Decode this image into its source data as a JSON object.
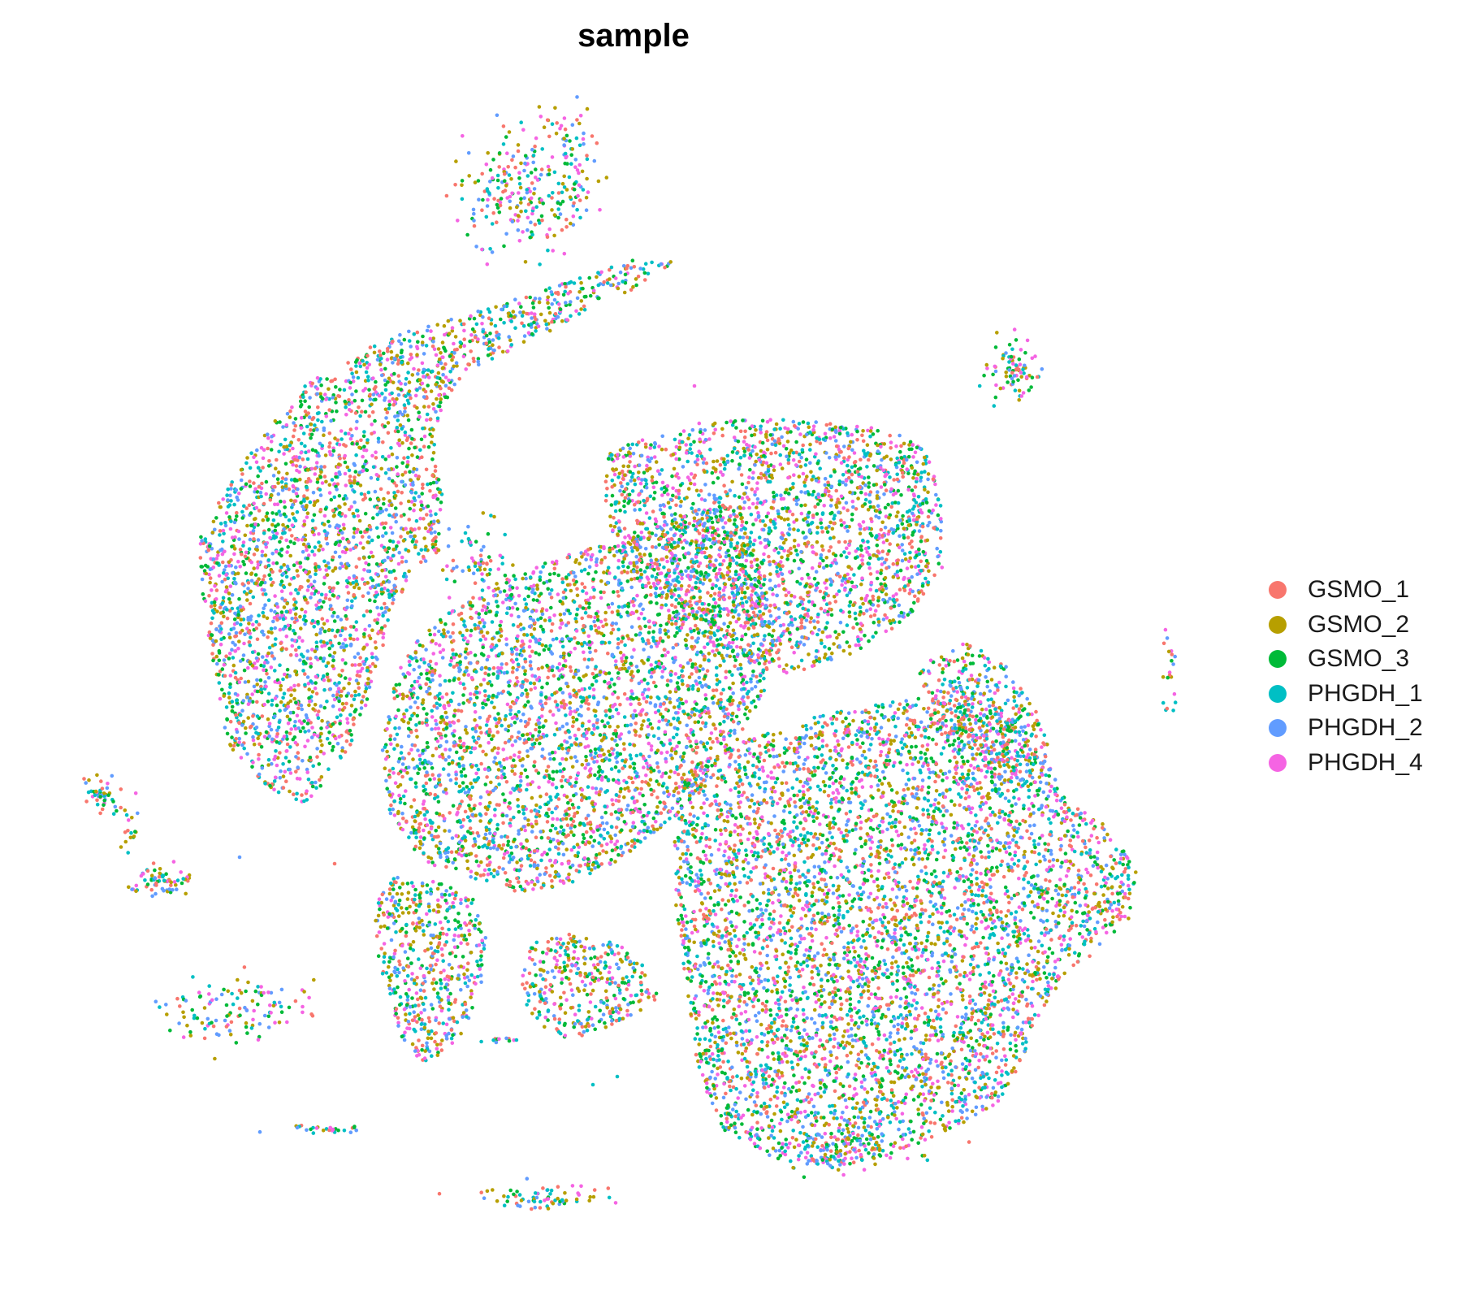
{
  "chart_data": {
    "type": "scatter",
    "title": "sample",
    "xlabel": "",
    "ylabel": "",
    "axes_shown": false,
    "grid": false,
    "legend_position": "right",
    "legend_shape": "filled circle",
    "series": [
      {
        "name": "GSMO_1",
        "color": "#F8766D"
      },
      {
        "name": "GSMO_2",
        "color": "#B79F00"
      },
      {
        "name": "GSMO_3",
        "color": "#00BA38"
      },
      {
        "name": "PHGDH_1",
        "color": "#00BFC4"
      },
      {
        "name": "PHGDH_2",
        "color": "#619CFF"
      },
      {
        "name": "PHGDH_4",
        "color": "#F564E3"
      }
    ],
    "point_mixing": "samples evenly intermixed across all clusters",
    "cluster_count_approx": 11
  }
}
